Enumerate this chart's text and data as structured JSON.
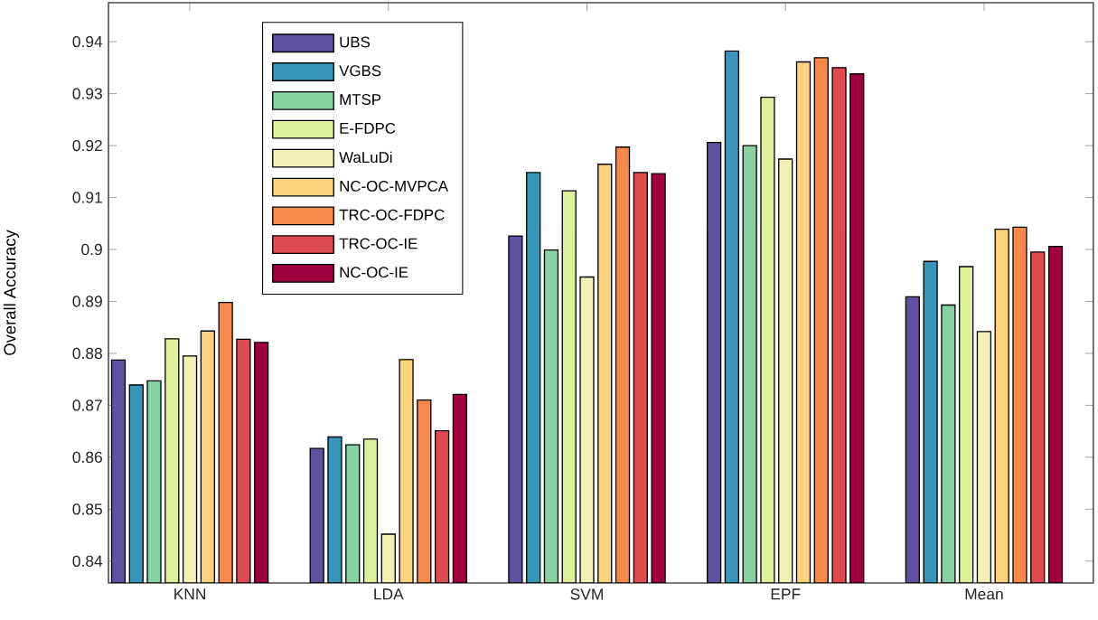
{
  "chart_data": {
    "type": "bar",
    "ylabel": "Overall Accuracy",
    "categories": [
      "KNN",
      "LDA",
      "SVM",
      "EPF",
      "Mean"
    ],
    "ylim": [
      0.8358,
      0.9475
    ],
    "yticks": [
      0.84,
      0.85,
      0.86,
      0.87,
      0.88,
      0.89,
      0.9,
      0.91,
      0.92,
      0.93,
      0.94
    ],
    "legend": "top left",
    "grid": false,
    "series": [
      {
        "name": "UBS",
        "color": "#5f50a0",
        "values": [
          0.8787,
          0.8617,
          0.9026,
          0.9206,
          0.8909
        ]
      },
      {
        "name": "VGBS",
        "color": "#3797bb",
        "values": [
          0.8739,
          0.8639,
          0.9148,
          0.9382,
          0.8977
        ]
      },
      {
        "name": "MTSP",
        "color": "#88d2a2",
        "values": [
          0.8747,
          0.8624,
          0.8999,
          0.92,
          0.8893
        ]
      },
      {
        "name": "E-FDPC",
        "color": "#dff09a",
        "values": [
          0.8828,
          0.8635,
          0.9113,
          0.9293,
          0.8967
        ]
      },
      {
        "name": "WaLuDi",
        "color": "#f2f0b4",
        "values": [
          0.8795,
          0.8452,
          0.8947,
          0.9174,
          0.8842
        ]
      },
      {
        "name": "NC-OC-MVPCA",
        "color": "#fcd27c",
        "values": [
          0.8843,
          0.8788,
          0.9164,
          0.9361,
          0.9039
        ]
      },
      {
        "name": "TRC-OC-FDPC",
        "color": "#f78a4b",
        "values": [
          0.8898,
          0.871,
          0.9197,
          0.9369,
          0.9043
        ]
      },
      {
        "name": "TRC-OC-IE",
        "color": "#de4a50",
        "values": [
          0.8827,
          0.8651,
          0.9148,
          0.935,
          0.8995
        ]
      },
      {
        "name": "NC-OC-IE",
        "color": "#a00040",
        "values": [
          0.8821,
          0.8721,
          0.9146,
          0.9338,
          0.9006
        ]
      }
    ]
  }
}
